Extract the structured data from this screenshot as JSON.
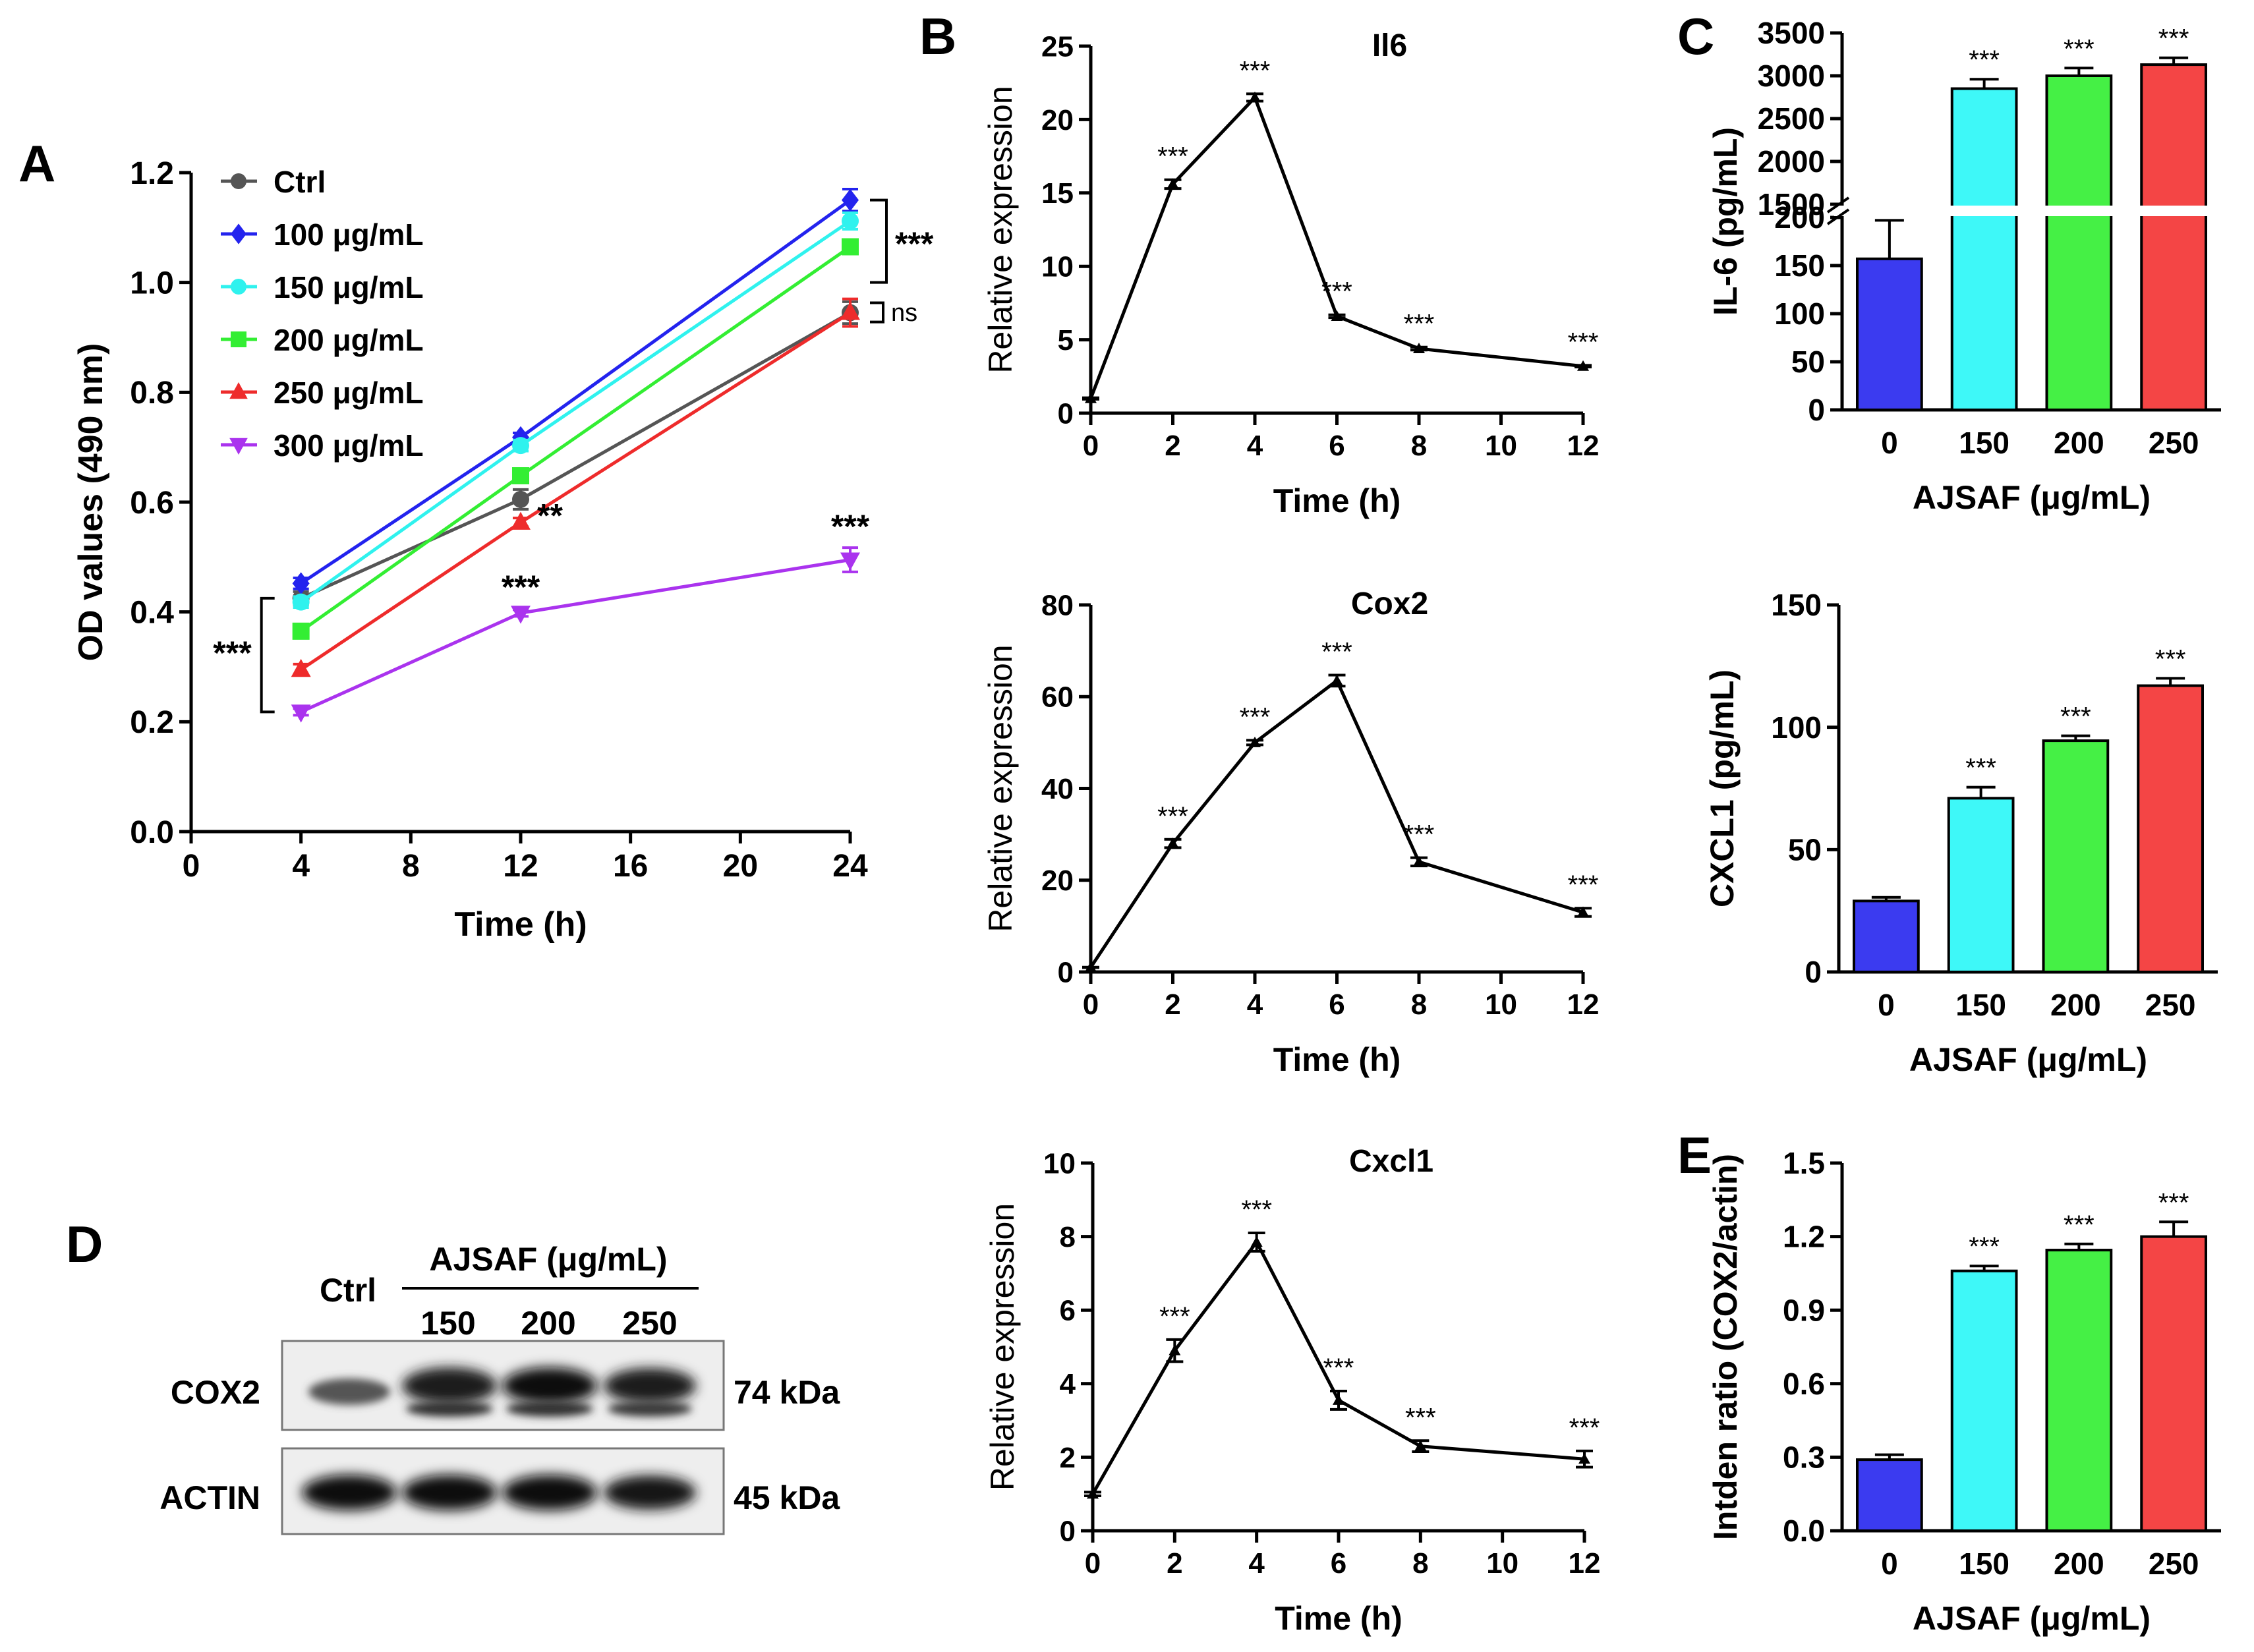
{
  "panel_letters": {
    "a": "A",
    "b": "B",
    "c": "C",
    "d": "D",
    "e": "E"
  },
  "colors": {
    "ctrl": "#555555",
    "c100": "#2323ee",
    "c150": "#2ff2ee",
    "c200": "#33ee33",
    "c250": "#ee2b2b",
    "c300": "#aa33ee",
    "bar0": "#3b3bf0",
    "bar150": "#3ef8f8",
    "bar200": "#45f045",
    "bar250": "#f44545"
  },
  "chart_data": [
    {
      "id": "A",
      "type": "line",
      "xlabel": "Time (h)",
      "ylabel": "OD values (490 nm)",
      "xlim": [
        0,
        24
      ],
      "ylim": [
        0,
        1.2
      ],
      "xticks": [
        "0",
        "4",
        "8",
        "12",
        "16",
        "20",
        "24"
      ],
      "yticks": [
        "0.0",
        "0.2",
        "0.4",
        "0.6",
        "0.8",
        "1.0",
        "1.2"
      ],
      "x": [
        4,
        12,
        24
      ],
      "series": [
        {
          "name": "Ctrl",
          "values": [
            0.425,
            0.605,
            0.945
          ],
          "errors": [
            0.012,
            0.018,
            0.02
          ],
          "marker": "circle",
          "color_key": "ctrl"
        },
        {
          "name": "100 μg/mL",
          "values": [
            0.452,
            0.718,
            1.15
          ],
          "errors": [
            0.01,
            0.008,
            0.02
          ],
          "marker": "diamond",
          "color_key": "c100"
        },
        {
          "name": "150 μg/mL",
          "values": [
            0.418,
            0.703,
            1.112
          ],
          "errors": [
            0.01,
            0.01,
            0.015
          ],
          "marker": "hexagon",
          "color_key": "c150"
        },
        {
          "name": "200 μg/mL",
          "values": [
            0.365,
            0.648,
            1.065
          ],
          "errors": [
            0.008,
            0.01,
            0.012
          ],
          "marker": "square",
          "color_key": "c200"
        },
        {
          "name": "250 μg/mL",
          "values": [
            0.295,
            0.563,
            0.945
          ],
          "errors": [
            0.01,
            0.008,
            0.025
          ],
          "marker": "triangle-up",
          "color_key": "c250"
        },
        {
          "name": "300 μg/mL",
          "values": [
            0.218,
            0.398,
            0.495
          ],
          "errors": [
            0.006,
            0.006,
            0.022
          ],
          "marker": "triangle-down",
          "color_key": "c300"
        }
      ],
      "annotations": [
        {
          "text": "***",
          "note": "4 h bracket"
        },
        {
          "text": "**",
          "note": "12 h, 250 μg/mL"
        },
        {
          "text": "***",
          "note": "12 h, 300 μg/mL"
        },
        {
          "text": "***",
          "note": "24 h, 300 μg/mL"
        },
        {
          "text": "***",
          "note": "24 h bracket 100–200 μg/mL"
        },
        {
          "text": "ns",
          "note": "24 h bracket Ctrl vs 250 μg/mL"
        }
      ]
    },
    {
      "id": "B1",
      "type": "line",
      "title": "Il6",
      "xlabel": "Time (h)",
      "ylabel": "Relative expression",
      "xlim": [
        0,
        12
      ],
      "ylim": [
        0,
        25
      ],
      "xticks": [
        "0",
        "2",
        "4",
        "6",
        "8",
        "10",
        "12"
      ],
      "yticks": [
        "0",
        "5",
        "10",
        "15",
        "20",
        "25"
      ],
      "x": [
        0,
        2,
        4,
        6,
        8,
        12
      ],
      "values": [
        1.0,
        15.6,
        21.5,
        6.6,
        4.4,
        3.2
      ],
      "errors": [
        0.05,
        0.3,
        0.25,
        0.1,
        0.1,
        0.06
      ],
      "sig": [
        "",
        "***",
        "***",
        "***",
        "***",
        "***"
      ]
    },
    {
      "id": "B2",
      "type": "line",
      "title": "Cox2",
      "xlabel": "Time (h)",
      "ylabel": "Relative expression",
      "xlim": [
        0,
        12
      ],
      "ylim": [
        0,
        80
      ],
      "xticks": [
        "0",
        "2",
        "4",
        "6",
        "8",
        "10",
        "12"
      ],
      "yticks": [
        "0",
        "20",
        "40",
        "60",
        "80"
      ],
      "x": [
        0,
        2,
        4,
        6,
        8,
        12
      ],
      "values": [
        1.0,
        28.0,
        50.0,
        63.5,
        24.0,
        13.0
      ],
      "errors": [
        0.05,
        0.9,
        0.5,
        1.2,
        0.9,
        0.9
      ],
      "sig": [
        "",
        "***",
        "***",
        "***",
        "***",
        "***"
      ]
    },
    {
      "id": "B3",
      "type": "line",
      "title": "Cxcl1",
      "xlabel": "Time (h)",
      "ylabel": "Relative expression",
      "xlim": [
        0,
        12
      ],
      "ylim": [
        0,
        10
      ],
      "xticks": [
        "0",
        "2",
        "4",
        "6",
        "8",
        "10",
        "12"
      ],
      "yticks": [
        "0",
        "2",
        "4",
        "6",
        "8",
        "10"
      ],
      "x": [
        0,
        2,
        4,
        6,
        8,
        12
      ],
      "values": [
        1.0,
        4.9,
        7.85,
        3.55,
        2.3,
        1.95
      ],
      "errors": [
        0.05,
        0.3,
        0.25,
        0.25,
        0.15,
        0.22
      ],
      "sig": [
        "",
        "***",
        "***",
        "***",
        "***",
        "***"
      ]
    },
    {
      "id": "C1",
      "type": "bar",
      "broken_axis": true,
      "xlabel": "AJSAF (μg/mL)",
      "ylabel": "IL-6 (pg/mL)",
      "categories": [
        "0",
        "150",
        "200",
        "250"
      ],
      "values": [
        157,
        2850,
        3000,
        3130
      ],
      "errors": [
        40,
        110,
        90,
        80
      ],
      "sig": [
        "",
        "***",
        "***",
        "***"
      ],
      "lower_segment": {
        "ylim": [
          0,
          200
        ],
        "yticks": [
          "0",
          "50",
          "100",
          "150",
          "200"
        ]
      },
      "upper_segment": {
        "ylim": [
          1500,
          3500
        ],
        "yticks": [
          "1500",
          "2000",
          "2500",
          "3000",
          "3500"
        ]
      },
      "color_keys": [
        "bar0",
        "bar150",
        "bar200",
        "bar250"
      ]
    },
    {
      "id": "C2",
      "type": "bar",
      "xlabel": "AJSAF (μg/mL)",
      "ylabel": "CXCL1 (pg/mL)",
      "categories": [
        "0",
        "150",
        "200",
        "250"
      ],
      "values": [
        29,
        71,
        94.5,
        117
      ],
      "errors": [
        1.5,
        4.5,
        2,
        3
      ],
      "sig": [
        "",
        "***",
        "***",
        "***"
      ],
      "ylim": [
        0,
        150
      ],
      "yticks": [
        "0",
        "50",
        "100",
        "150"
      ],
      "color_keys": [
        "bar0",
        "bar150",
        "bar200",
        "bar250"
      ]
    },
    {
      "id": "E",
      "type": "bar",
      "xlabel": "AJSAF (μg/mL)",
      "ylabel": "Intden ratio (COX2/actin)",
      "categories": [
        "0",
        "150",
        "200",
        "250"
      ],
      "values": [
        0.29,
        1.06,
        1.145,
        1.2
      ],
      "errors": [
        0.02,
        0.02,
        0.025,
        0.06
      ],
      "sig": [
        "",
        "***",
        "***",
        "***"
      ],
      "ylim": [
        0,
        1.5
      ],
      "yticks": [
        "0.0",
        "0.3",
        "0.6",
        "0.9",
        "1.2",
        "1.5"
      ],
      "color_keys": [
        "bar0",
        "bar150",
        "bar200",
        "bar250"
      ]
    }
  ],
  "western_blot": {
    "group_label": "AJSAF (μg/mL)",
    "lanes": [
      "Ctrl",
      "150",
      "200",
      "250"
    ],
    "rows": [
      {
        "label": "COX2",
        "size": "74 kDa"
      },
      {
        "label": "ACTIN",
        "size": "45 kDa"
      }
    ]
  }
}
